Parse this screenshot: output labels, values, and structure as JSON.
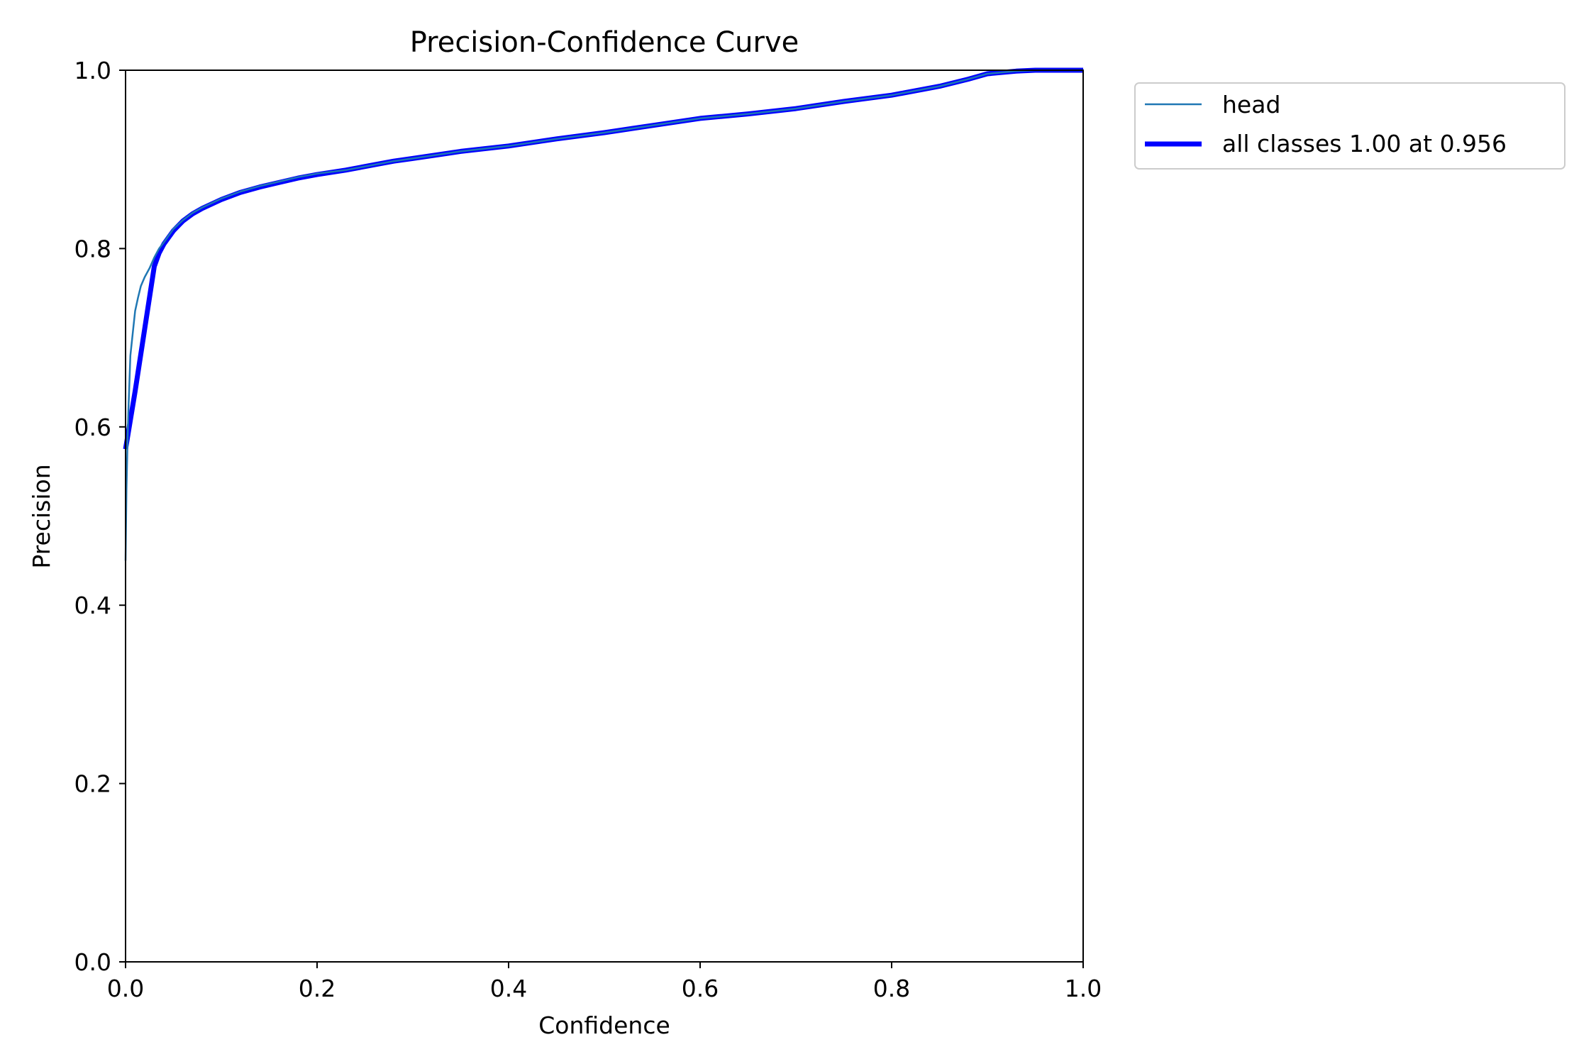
{
  "chart_data": {
    "type": "line",
    "title": "Precision-Confidence Curve",
    "xlabel": "Confidence",
    "ylabel": "Precision",
    "xlim": [
      0.0,
      1.0
    ],
    "ylim": [
      0.0,
      1.0
    ],
    "xticks": [
      "0.0",
      "0.2",
      "0.4",
      "0.6",
      "0.8",
      "1.0"
    ],
    "yticks": [
      "0.0",
      "0.2",
      "0.4",
      "0.6",
      "0.8",
      "1.0"
    ],
    "grid": false,
    "legend_position": "outside-top-right",
    "series": [
      {
        "name": "head",
        "color": "#1f77b4",
        "style": "thin",
        "x": [
          0.0,
          0.001,
          0.002,
          0.003,
          0.005,
          0.008,
          0.01,
          0.013,
          0.016,
          0.02,
          0.025,
          0.03,
          0.035,
          0.04,
          0.05,
          0.06,
          0.07,
          0.08,
          0.1,
          0.12,
          0.14,
          0.16,
          0.18,
          0.2,
          0.23,
          0.26,
          0.28,
          0.3,
          0.35,
          0.4,
          0.45,
          0.5,
          0.55,
          0.6,
          0.62,
          0.65,
          0.7,
          0.75,
          0.8,
          0.85,
          0.88,
          0.9,
          0.93,
          0.95,
          0.97,
          1.0
        ],
        "values": [
          0.45,
          0.53,
          0.58,
          0.62,
          0.68,
          0.71,
          0.73,
          0.745,
          0.758,
          0.768,
          0.778,
          0.79,
          0.8,
          0.807,
          0.822,
          0.832,
          0.84,
          0.846,
          0.856,
          0.864,
          0.87,
          0.875,
          0.88,
          0.884,
          0.888,
          0.894,
          0.898,
          0.901,
          0.909,
          0.915,
          0.923,
          0.93,
          0.938,
          0.946,
          0.948,
          0.951,
          0.957,
          0.965,
          0.972,
          0.982,
          0.99,
          0.996,
          0.999,
          1.0,
          1.0,
          1.0
        ]
      },
      {
        "name": "all classes 1.00 at 0.956",
        "color": "#0000ff",
        "style": "thick",
        "x": [
          0.0,
          0.01,
          0.02,
          0.03,
          0.035,
          0.04,
          0.05,
          0.06,
          0.07,
          0.08,
          0.1,
          0.12,
          0.14,
          0.16,
          0.18,
          0.2,
          0.23,
          0.26,
          0.28,
          0.3,
          0.35,
          0.4,
          0.45,
          0.5,
          0.55,
          0.6,
          0.62,
          0.65,
          0.7,
          0.75,
          0.8,
          0.85,
          0.88,
          0.9,
          0.93,
          0.95,
          0.97,
          1.0
        ],
        "values": [
          0.575,
          0.64,
          0.71,
          0.78,
          0.795,
          0.805,
          0.82,
          0.831,
          0.839,
          0.845,
          0.855,
          0.863,
          0.869,
          0.874,
          0.879,
          0.883,
          0.888,
          0.894,
          0.898,
          0.901,
          0.909,
          0.915,
          0.923,
          0.93,
          0.938,
          0.946,
          0.948,
          0.951,
          0.957,
          0.965,
          0.972,
          0.982,
          0.99,
          0.996,
          0.999,
          1.0,
          1.0,
          1.0
        ]
      }
    ]
  }
}
